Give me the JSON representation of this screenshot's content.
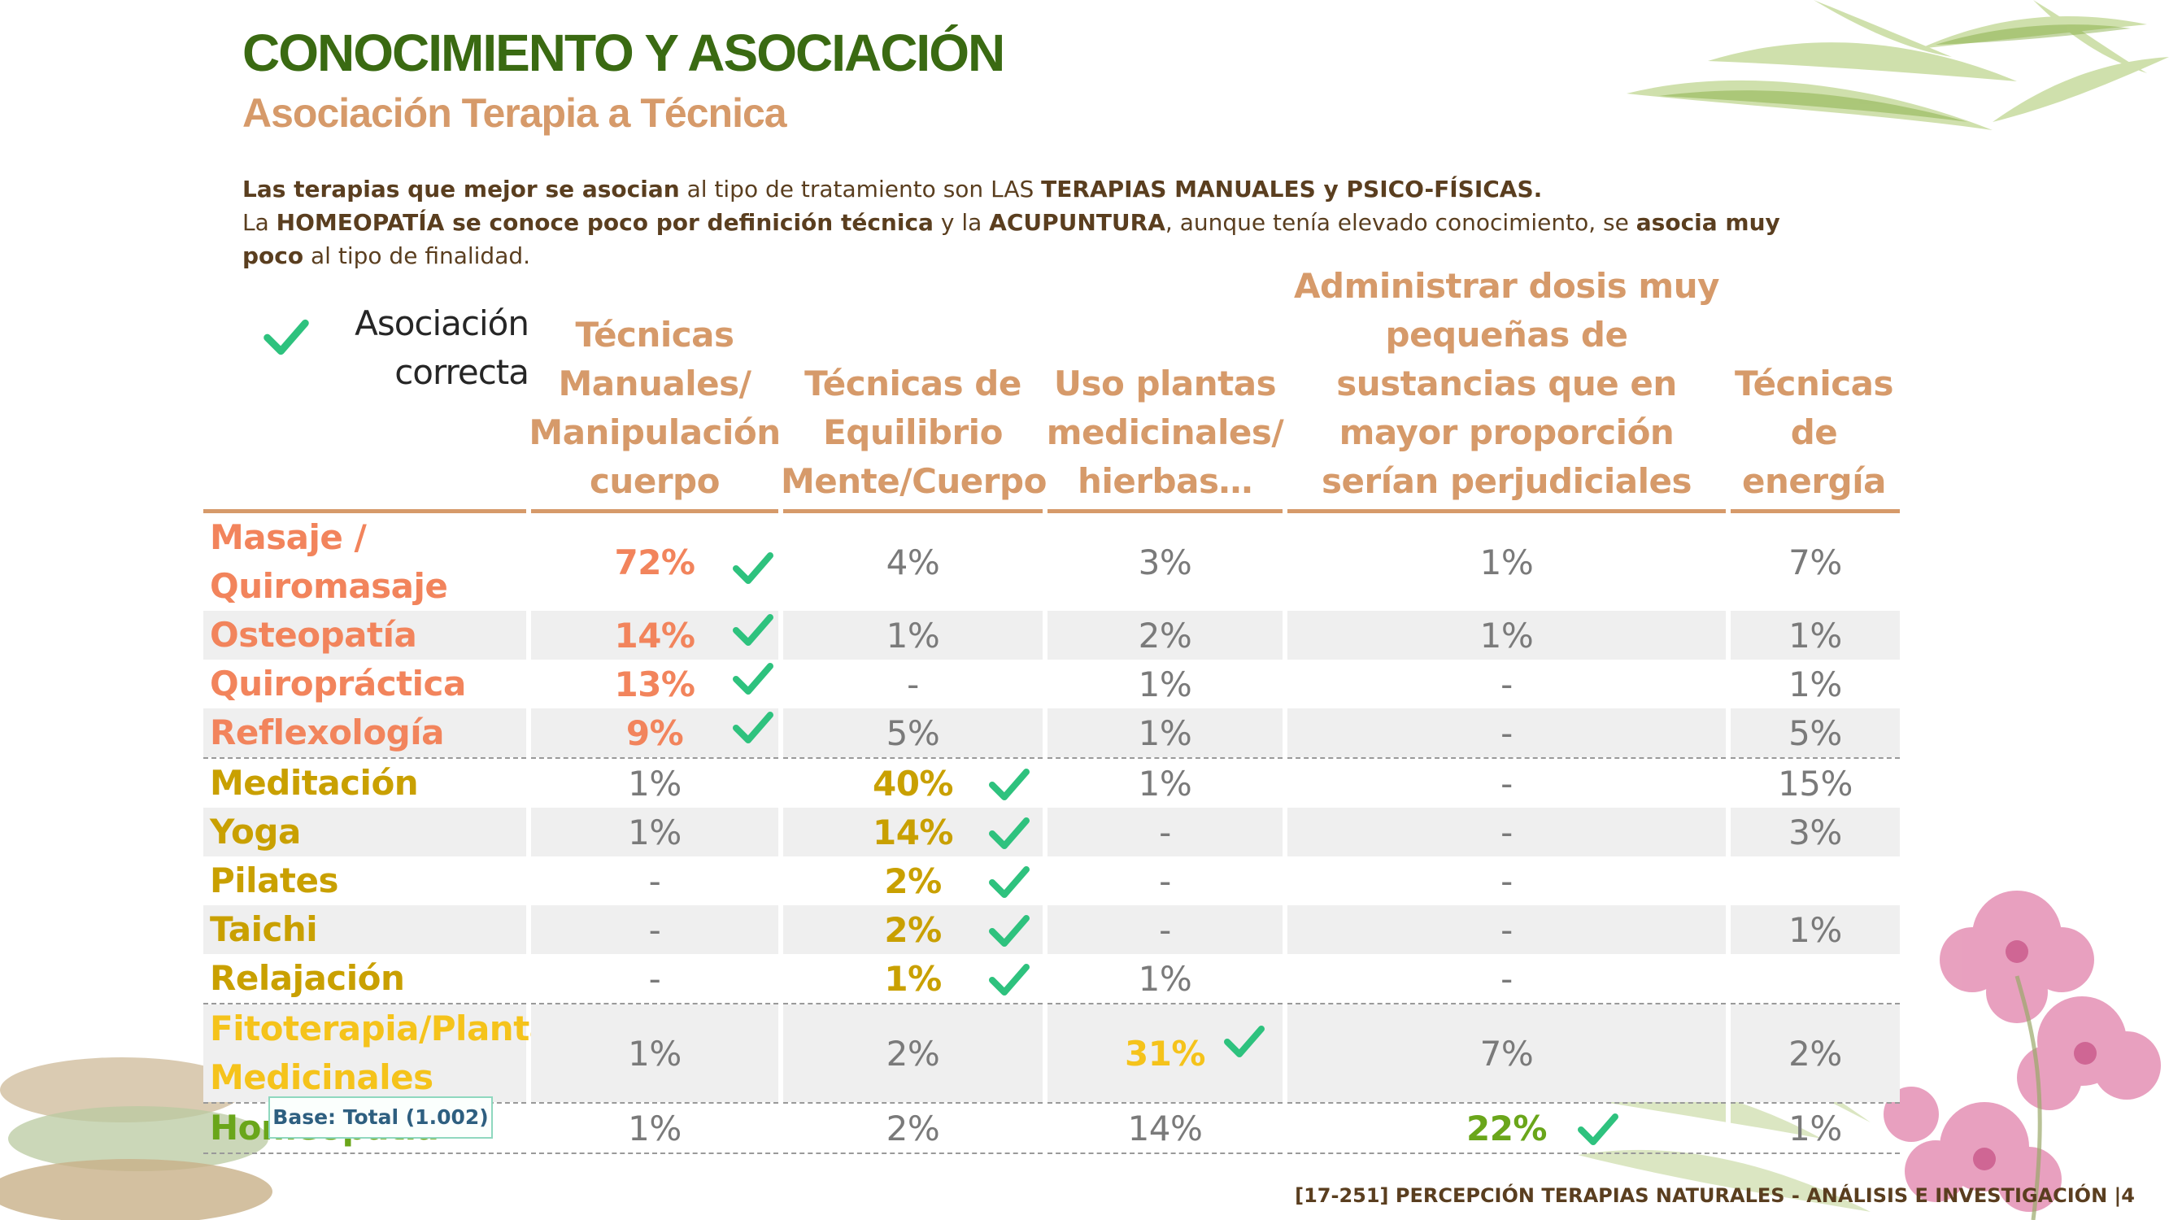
{
  "header": {
    "title": "CONOCIMIENTO Y ASOCIACIÓN",
    "subtitle": "Asociación Terapia a Técnica"
  },
  "intro": {
    "line1_bold": "Las terapias que mejor se asocian",
    "line1_text": " al tipo de tratamiento son LAS ",
    "line1_bold2": "TERAPIAS MANUALES y PSICO-FÍSICAS.",
    "line2_text1": "La ",
    "line2_bold1": "HOMEOPATÍA se conoce poco por definición técnica",
    "line2_text2": " y la ",
    "line2_bold2": "ACUPUNTURA",
    "line2_text3": ", aunque tenía elevado conocimiento, se ",
    "line2_bold3": "asocia muy poco",
    "line2_text4": " al tipo de finalidad."
  },
  "legend": {
    "label": "Asociación correcta",
    "icon": "check-icon"
  },
  "table": {
    "columns": [
      "Técnicas Manuales/ Manipulación cuerpo",
      "Técnicas de Equilibrio Mente/Cuerpo",
      "Uso plantas medicinales/ hierbas…",
      "Administrar dosis muy pequeñas de sustancias que en mayor proporción serían perjudiciales",
      "Técnicas de energía"
    ],
    "rows": [
      {
        "label": "Masaje / Quiromasaje",
        "values": [
          "72%",
          "4%",
          "3%",
          "1%",
          "7%"
        ],
        "correct": 0,
        "color": "#f2845c"
      },
      {
        "label": "Osteopatía",
        "values": [
          "14%",
          "1%",
          "2%",
          "1%",
          "1%"
        ],
        "correct": 0,
        "color": "#f2845c"
      },
      {
        "label": "Quiropráctica",
        "values": [
          "13%",
          "-",
          "1%",
          "-",
          "1%"
        ],
        "correct": 0,
        "color": "#f2845c"
      },
      {
        "label": "Reflexología",
        "values": [
          "9%",
          "5%",
          "1%",
          "-",
          "5%"
        ],
        "correct": 0,
        "color": "#f2845c"
      },
      {
        "label": "Meditación",
        "values": [
          "1%",
          "40%",
          "1%",
          "-",
          "15%"
        ],
        "correct": 1,
        "color": "#c9a000"
      },
      {
        "label": "Yoga",
        "values": [
          "1%",
          "14%",
          "-",
          "-",
          "3%"
        ],
        "correct": 1,
        "color": "#c9a000"
      },
      {
        "label": "Pilates",
        "values": [
          "-",
          "2%",
          "-",
          "-",
          ""
        ],
        "correct": 1,
        "color": "#c9a000"
      },
      {
        "label": "Taichi",
        "values": [
          "-",
          "2%",
          "-",
          "-",
          "1%"
        ],
        "correct": 1,
        "color": "#c9a000"
      },
      {
        "label": "Relajación",
        "values": [
          "-",
          "1%",
          "1%",
          "-",
          ""
        ],
        "correct": 1,
        "color": "#c9a000"
      },
      {
        "label": "Fitoterapia/Plantas Medicinales",
        "values": [
          "1%",
          "2%",
          "31%",
          "7%",
          "2%"
        ],
        "correct": 2,
        "color": "#f5c31b"
      },
      {
        "label": "Homeopatía",
        "values": [
          "1%",
          "2%",
          "14%",
          "22%",
          "1%"
        ],
        "correct": 3,
        "color": "#6aa61a"
      }
    ]
  },
  "base_note": "Base: Total (1.002)",
  "footer": "[17-251] PERCEPCIÓN TERAPIAS NATURALES - ANÁLISIS E INVESTIGACIÓN  |4",
  "colors": {
    "check": "#2ec27e",
    "header_text": "#d69a6a",
    "title": "#3a6a12"
  }
}
